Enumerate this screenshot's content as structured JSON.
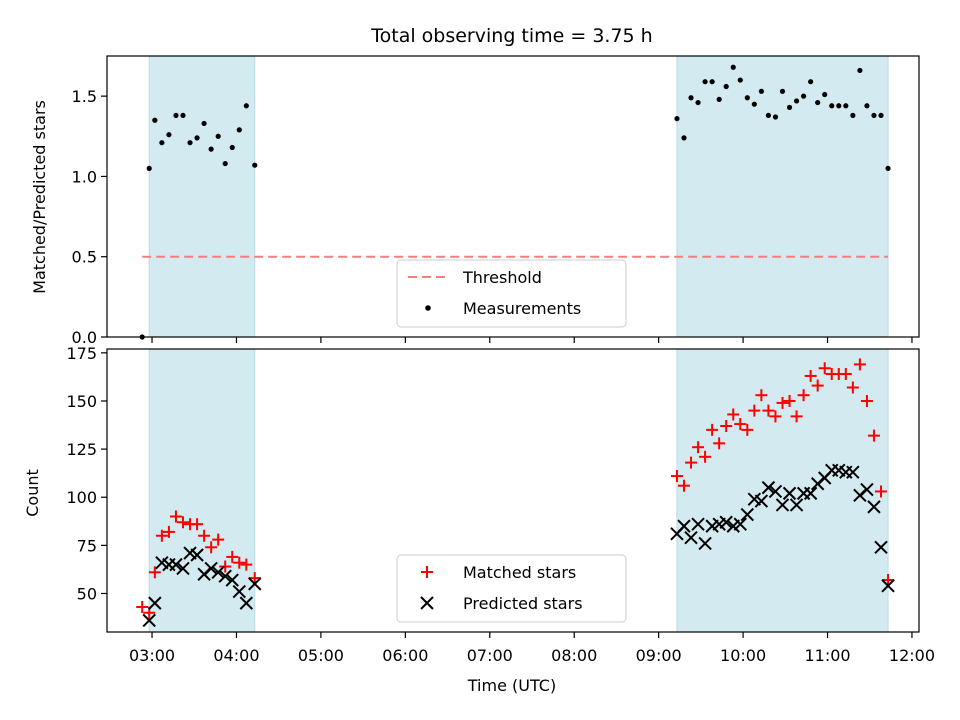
{
  "chart_data": [
    {
      "type": "scatter",
      "title": "Total observing time = 3.75 h",
      "ylabel": "Matched/Predicted stars",
      "ylim": [
        0,
        1.75
      ],
      "yticks": [
        0.0,
        0.5,
        1.0,
        1.5
      ],
      "ytick_labels": [
        "0.0",
        "0.5",
        "1.0",
        "1.5"
      ],
      "xlim": [
        "02:28",
        "12:05"
      ],
      "observing_windows": [
        [
          "02:58",
          "04:13"
        ],
        [
          "09:13",
          "11:43"
        ]
      ],
      "shade_color": "#d3ebf0",
      "threshold": {
        "name": "Threshold",
        "value": 0.5,
        "x_range": [
          "02:53",
          "11:43"
        ],
        "color": "#f08080",
        "style": "dashed"
      },
      "series": [
        {
          "name": "Measurements",
          "color": "#000000",
          "marker": "dot",
          "points": [
            [
              "02:53",
              0.0
            ],
            [
              "02:58",
              1.05
            ],
            [
              "03:02",
              1.35
            ],
            [
              "03:07",
              1.21
            ],
            [
              "03:12",
              1.26
            ],
            [
              "03:17",
              1.38
            ],
            [
              "03:22",
              1.38
            ],
            [
              "03:27",
              1.21
            ],
            [
              "03:32",
              1.24
            ],
            [
              "03:37",
              1.33
            ],
            [
              "03:42",
              1.17
            ],
            [
              "03:47",
              1.25
            ],
            [
              "03:52",
              1.08
            ],
            [
              "03:57",
              1.18
            ],
            [
              "04:02",
              1.29
            ],
            [
              "04:07",
              1.44
            ],
            [
              "04:13",
              1.07
            ],
            [
              "09:13",
              1.36
            ],
            [
              "09:18",
              1.24
            ],
            [
              "09:23",
              1.49
            ],
            [
              "09:28",
              1.46
            ],
            [
              "09:33",
              1.59
            ],
            [
              "09:38",
              1.59
            ],
            [
              "09:43",
              1.48
            ],
            [
              "09:48",
              1.56
            ],
            [
              "09:53",
              1.68
            ],
            [
              "09:58",
              1.6
            ],
            [
              "10:03",
              1.49
            ],
            [
              "10:08",
              1.45
            ],
            [
              "10:13",
              1.53
            ],
            [
              "10:18",
              1.38
            ],
            [
              "10:23",
              1.37
            ],
            [
              "10:28",
              1.53
            ],
            [
              "10:33",
              1.43
            ],
            [
              "10:38",
              1.47
            ],
            [
              "10:43",
              1.5
            ],
            [
              "10:48",
              1.59
            ],
            [
              "10:53",
              1.46
            ],
            [
              "10:58",
              1.51
            ],
            [
              "11:03",
              1.44
            ],
            [
              "11:08",
              1.44
            ],
            [
              "11:13",
              1.44
            ],
            [
              "11:18",
              1.38
            ],
            [
              "11:23",
              1.66
            ],
            [
              "11:28",
              1.44
            ],
            [
              "11:33",
              1.38
            ],
            [
              "11:38",
              1.38
            ],
            [
              "11:43",
              1.05
            ]
          ]
        }
      ],
      "legend": {
        "placement": "lower-center",
        "entries": [
          "Threshold",
          "Measurements"
        ]
      }
    },
    {
      "type": "scatter",
      "xlabel": "Time (UTC)",
      "ylabel": "Count",
      "ylim": [
        30,
        177
      ],
      "yticks": [
        50,
        75,
        100,
        125,
        150,
        175
      ],
      "ytick_labels": [
        "50",
        "75",
        "100",
        "125",
        "150",
        "175"
      ],
      "xlim": [
        "02:28",
        "12:05"
      ],
      "xticks": [
        "03:00",
        "04:00",
        "05:00",
        "06:00",
        "07:00",
        "08:00",
        "09:00",
        "10:00",
        "11:00",
        "12:00"
      ],
      "xtick_labels": [
        "03:00",
        "04:00",
        "05:00",
        "06:00",
        "07:00",
        "08:00",
        "09:00",
        "10:00",
        "11:00",
        "12:00"
      ],
      "observing_windows": [
        [
          "02:58",
          "04:13"
        ],
        [
          "09:13",
          "11:43"
        ]
      ],
      "shade_color": "#d3ebf0",
      "series": [
        {
          "name": "Matched stars",
          "color": "#ff0000",
          "marker": "plus",
          "points": [
            [
              "02:53",
              43
            ],
            [
              "02:58",
              40
            ],
            [
              "03:02",
              61
            ],
            [
              "03:07",
              80
            ],
            [
              "03:12",
              82
            ],
            [
              "03:17",
              90
            ],
            [
              "03:22",
              87
            ],
            [
              "03:27",
              86
            ],
            [
              "03:32",
              86
            ],
            [
              "03:37",
              80
            ],
            [
              "03:42",
              74
            ],
            [
              "03:47",
              78
            ],
            [
              "03:52",
              64
            ],
            [
              "03:57",
              69
            ],
            [
              "04:02",
              66
            ],
            [
              "04:07",
              65
            ],
            [
              "04:13",
              58
            ],
            [
              "09:13",
              111
            ],
            [
              "09:18",
              106
            ],
            [
              "09:23",
              118
            ],
            [
              "09:28",
              126
            ],
            [
              "09:33",
              121
            ],
            [
              "09:38",
              135
            ],
            [
              "09:43",
              128
            ],
            [
              "09:48",
              137
            ],
            [
              "09:53",
              143
            ],
            [
              "09:58",
              138
            ],
            [
              "10:03",
              135
            ],
            [
              "10:08",
              145
            ],
            [
              "10:13",
              153
            ],
            [
              "10:18",
              145
            ],
            [
              "10:23",
              142
            ],
            [
              "10:28",
              149
            ],
            [
              "10:33",
              150
            ],
            [
              "10:38",
              142
            ],
            [
              "10:43",
              153
            ],
            [
              "10:48",
              163
            ],
            [
              "10:53",
              158
            ],
            [
              "10:58",
              167
            ],
            [
              "11:03",
              164
            ],
            [
              "11:08",
              164
            ],
            [
              "11:13",
              164
            ],
            [
              "11:18",
              157
            ],
            [
              "11:23",
              169
            ],
            [
              "11:28",
              150
            ],
            [
              "11:33",
              132
            ],
            [
              "11:38",
              103
            ],
            [
              "11:43",
              57
            ]
          ]
        },
        {
          "name": "Predicted stars",
          "color": "#000000",
          "marker": "x",
          "points": [
            [
              "02:58",
              36
            ],
            [
              "03:02",
              45
            ],
            [
              "03:07",
              66
            ],
            [
              "03:12",
              65
            ],
            [
              "03:17",
              65
            ],
            [
              "03:22",
              63
            ],
            [
              "03:27",
              71
            ],
            [
              "03:32",
              70
            ],
            [
              "03:37",
              60
            ],
            [
              "03:42",
              63
            ],
            [
              "03:47",
              61
            ],
            [
              "03:52",
              59
            ],
            [
              "03:57",
              57
            ],
            [
              "04:02",
              51
            ],
            [
              "04:07",
              45
            ],
            [
              "04:13",
              55
            ],
            [
              "09:13",
              81
            ],
            [
              "09:18",
              85
            ],
            [
              "09:23",
              79
            ],
            [
              "09:28",
              86
            ],
            [
              "09:33",
              76
            ],
            [
              "09:38",
              85
            ],
            [
              "09:43",
              86
            ],
            [
              "09:48",
              87
            ],
            [
              "09:53",
              85
            ],
            [
              "09:58",
              86
            ],
            [
              "10:03",
              91
            ],
            [
              "10:08",
              99
            ],
            [
              "10:13",
              98
            ],
            [
              "10:18",
              105
            ],
            [
              "10:23",
              103
            ],
            [
              "10:28",
              96
            ],
            [
              "10:33",
              102
            ],
            [
              "10:38",
              96
            ],
            [
              "10:43",
              102
            ],
            [
              "10:48",
              102
            ],
            [
              "10:53",
              107
            ],
            [
              "10:58",
              110
            ],
            [
              "11:03",
              114
            ],
            [
              "11:08",
              114
            ],
            [
              "11:13",
              113
            ],
            [
              "11:18",
              113
            ],
            [
              "11:23",
              101
            ],
            [
              "11:28",
              104
            ],
            [
              "11:33",
              95
            ],
            [
              "11:38",
              74
            ],
            [
              "11:43",
              54
            ]
          ]
        }
      ],
      "legend": {
        "placement": "lower-center",
        "entries": [
          "Matched stars",
          "Predicted stars"
        ]
      }
    }
  ]
}
